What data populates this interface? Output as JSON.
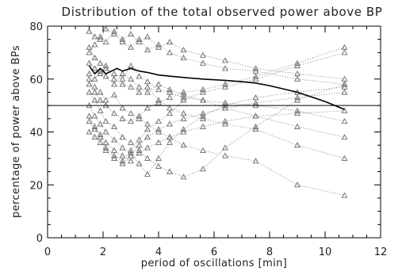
{
  "chart_data": {
    "type": "line",
    "title": "Distribution of the total observed power above BP",
    "xlabel": "period of oscillations [min]",
    "ylabel": "percentage of power above BPs",
    "xlim": [
      0,
      12
    ],
    "ylim": [
      0,
      80
    ],
    "xticks": [
      0,
      2,
      4,
      6,
      8,
      10,
      12
    ],
    "yticks": [
      0,
      20,
      40,
      60,
      80
    ],
    "grid": false,
    "reference_line_y": 50,
    "x": [
      1.5,
      1.7,
      1.9,
      2.1,
      2.4,
      2.7,
      3.0,
      3.3,
      3.6,
      4.0,
      4.4,
      4.9,
      5.6,
      6.4,
      7.5,
      9.0,
      10.7
    ],
    "series": [
      {
        "values": [
          78,
          76,
          75,
          79,
          77,
          74,
          72,
          75,
          71,
          73,
          70,
          68,
          66,
          64,
          63,
          60,
          58
        ],
        "style": "dotted-triangles"
      },
      {
        "values": [
          72,
          68,
          66,
          64,
          62,
          60,
          65,
          61,
          59,
          56,
          55,
          53,
          52,
          51,
          50,
          48,
          44
        ],
        "style": "dotted-triangles"
      },
      {
        "values": [
          66,
          64,
          62,
          65,
          60,
          58,
          57,
          55,
          57,
          52,
          49,
          47,
          45,
          43,
          41,
          35,
          30
        ],
        "style": "dotted-triangles"
      },
      {
        "values": [
          60,
          57,
          55,
          52,
          54,
          49,
          47,
          45,
          43,
          40,
          38,
          35,
          33,
          31,
          29,
          20,
          16
        ],
        "style": "dotted-triangles"
      },
      {
        "values": [
          55,
          52,
          48,
          44,
          42,
          38,
          36,
          33,
          30,
          27,
          25,
          23,
          26,
          34,
          42,
          52,
          58
        ],
        "style": "dotted-triangles"
      },
      {
        "values": [
          50,
          46,
          43,
          40,
          37,
          34,
          32,
          28,
          24,
          30,
          36,
          41,
          46,
          50,
          53,
          55,
          57
        ],
        "style": "dotted-triangles"
      },
      {
        "values": [
          46,
          42,
          38,
          34,
          31,
          29,
          33,
          37,
          41,
          44,
          47,
          52,
          55,
          57,
          60,
          65,
          70
        ],
        "style": "dotted-triangles"
      },
      {
        "values": [
          70,
          73,
          76,
          74,
          78,
          75,
          77,
          74,
          76,
          72,
          74,
          71,
          69,
          67,
          64,
          62,
          60
        ],
        "style": "dotted-triangles"
      },
      {
        "values": [
          62,
          60,
          63,
          61,
          58,
          62,
          60,
          57,
          55,
          58,
          56,
          54,
          52,
          49,
          46,
          42,
          38
        ],
        "style": "dotted-triangles"
      },
      {
        "values": [
          40,
          38,
          36,
          33,
          30,
          28,
          31,
          35,
          38,
          41,
          43,
          45,
          47,
          49,
          51,
          53,
          55
        ],
        "style": "dotted-triangles"
      },
      {
        "values": [
          58,
          55,
          52,
          50,
          47,
          45,
          44,
          46,
          49,
          51,
          53,
          55,
          56,
          58,
          61,
          66,
          72
        ],
        "style": "dotted-triangles"
      },
      {
        "values": [
          44,
          41,
          39,
          36,
          33,
          31,
          29,
          32,
          34,
          36,
          38,
          40,
          42,
          44,
          46,
          47,
          48
        ],
        "style": "dotted-triangles"
      }
    ],
    "mean": {
      "x": [
        1.5,
        1.7,
        1.9,
        2.1,
        2.3,
        2.5,
        2.7,
        3.0,
        3.3,
        3.6,
        4.0,
        4.5,
        5.0,
        5.6,
        6.4,
        7.0,
        7.5,
        8.0,
        9.0,
        10.0,
        10.7
      ],
      "values": [
        65,
        62,
        64,
        62,
        63,
        64,
        63,
        64,
        63,
        62.5,
        61.5,
        61,
        60.5,
        60,
        59.5,
        59,
        58.5,
        57.5,
        55,
        51.5,
        48.5
      ],
      "style": "solid"
    }
  }
}
